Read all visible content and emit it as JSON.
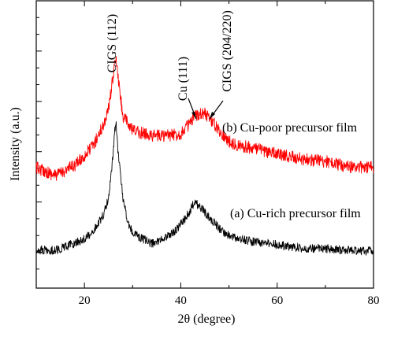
{
  "chart_data": {
    "type": "line",
    "title": "",
    "xlabel": "2θ (degree)",
    "ylabel": "Intensity (a.u.)",
    "xlim": [
      10,
      80
    ],
    "xticks": [
      20,
      40,
      60,
      80
    ],
    "yticks_labeled": false,
    "grid": false,
    "legend": "none",
    "series": [
      {
        "name": "(b) Cu-poor precursor film",
        "color": "#ff0000",
        "points": [
          [
            10,
            213
          ],
          [
            14,
            223
          ],
          [
            18,
            210
          ],
          [
            20,
            198
          ],
          [
            22,
            183
          ],
          [
            24,
            158
          ],
          [
            25,
            138
          ],
          [
            26,
            95
          ],
          [
            26.5,
            72
          ],
          [
            27,
            100
          ],
          [
            28,
            148
          ],
          [
            30,
            166
          ],
          [
            34,
            172
          ],
          [
            38,
            172
          ],
          [
            40,
            170
          ],
          [
            41,
            162
          ],
          [
            42,
            157
          ],
          [
            43,
            148
          ],
          [
            44,
            143
          ],
          [
            45,
            144
          ],
          [
            46,
            150
          ],
          [
            47,
            158
          ],
          [
            48,
            166
          ],
          [
            50,
            180
          ],
          [
            52,
            185
          ],
          [
            55,
            188
          ],
          [
            58,
            193
          ],
          [
            60,
            196
          ],
          [
            65,
            202
          ],
          [
            70,
            205
          ],
          [
            75,
            212
          ],
          [
            80,
            213
          ]
        ]
      },
      {
        "name": "(a) Cu-rich precursor film",
        "color": "#000000",
        "points": [
          [
            10,
            317
          ],
          [
            14,
            318
          ],
          [
            18,
            309
          ],
          [
            20,
            304
          ],
          [
            22,
            292
          ],
          [
            24,
            272
          ],
          [
            25,
            252
          ],
          [
            25.8,
            205
          ],
          [
            26.5,
            152
          ],
          [
            27,
            195
          ],
          [
            28,
            252
          ],
          [
            29,
            282
          ],
          [
            30,
            296
          ],
          [
            34,
            310
          ],
          [
            38,
            298
          ],
          [
            40,
            285
          ],
          [
            41,
            277
          ],
          [
            42,
            267
          ],
          [
            42.5,
            260
          ],
          [
            43,
            258
          ],
          [
            44,
            262
          ],
          [
            45,
            270
          ],
          [
            46,
            277
          ],
          [
            48,
            290
          ],
          [
            50,
            300
          ],
          [
            55,
            307
          ],
          [
            60,
            311
          ],
          [
            65,
            315
          ],
          [
            70,
            316
          ],
          [
            75,
            318
          ],
          [
            80,
            319
          ]
        ]
      }
    ],
    "annotations": [
      {
        "text": "CIGS (112)",
        "x": 26.5
      },
      {
        "text": "Cu (111)",
        "x": 43
      },
      {
        "text": "CIGS (204/220)",
        "x": 45.5
      }
    ]
  }
}
